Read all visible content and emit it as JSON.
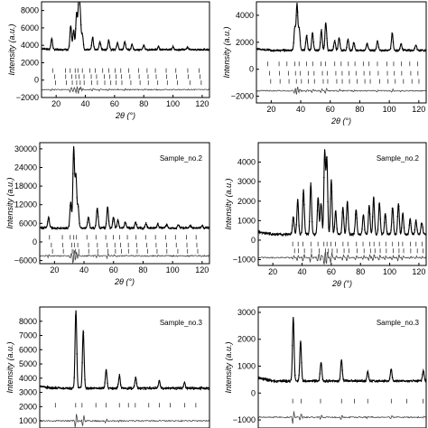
{
  "chart_data": [
    {
      "type": "line",
      "panel": "top-left",
      "sample_label": "",
      "xlabel": "2θ (°)",
      "ylabel": "Intensity (a.u.)",
      "xlim": [
        10,
        125
      ],
      "ylim": [
        -2000,
        9000
      ],
      "xticks": [
        20,
        40,
        60,
        80,
        100,
        120
      ],
      "yticks": [
        -2000,
        0,
        2000,
        4000,
        6000,
        8000
      ],
      "baseline": 3500,
      "peaks": [
        [
          17,
          1200
        ],
        [
          30,
          2800
        ],
        [
          32,
          2300
        ],
        [
          34,
          4200
        ],
        [
          35.5,
          5300
        ],
        [
          36.5,
          3600
        ],
        [
          38,
          1700
        ],
        [
          45,
          1400
        ],
        [
          50,
          900
        ],
        [
          56,
          1100
        ],
        [
          62,
          800
        ],
        [
          67,
          900
        ],
        [
          72,
          600
        ],
        [
          80,
          500
        ],
        [
          90,
          400
        ],
        [
          100,
          350
        ],
        [
          110,
          300
        ]
      ],
      "tick_rows": [
        1100,
        400,
        -300
      ],
      "tick_positions": [
        18,
        26,
        30,
        33,
        35,
        38,
        43,
        47,
        52,
        56,
        60,
        64,
        70,
        76,
        82,
        88,
        95,
        102,
        110,
        118
      ],
      "difference_level": -1100
    },
    {
      "type": "line",
      "panel": "top-right",
      "sample_label": "",
      "xlabel": "2θ (°)",
      "ylabel": "Intensity (a.u.)",
      "xlim": [
        10,
        125
      ],
      "ylim": [
        -2500,
        5000
      ],
      "xticks": [
        20,
        40,
        60,
        80,
        100,
        120
      ],
      "yticks": [
        -2000,
        0,
        2000,
        4000
      ],
      "baseline": 1400,
      "peaks": [
        [
          36,
          1700
        ],
        [
          37.5,
          3400
        ],
        [
          39,
          1600
        ],
        [
          44,
          1100
        ],
        [
          48,
          1300
        ],
        [
          54,
          1500
        ],
        [
          57,
          2100
        ],
        [
          63,
          700
        ],
        [
          66,
          900
        ],
        [
          72,
          800
        ],
        [
          76,
          600
        ],
        [
          85,
          500
        ],
        [
          92,
          700
        ],
        [
          102,
          1300
        ],
        [
          108,
          500
        ],
        [
          118,
          400
        ]
      ],
      "tick_rows": [
        400,
        -300,
        -900
      ],
      "tick_positions": [
        18,
        25,
        31,
        36,
        39,
        44,
        48,
        54,
        57,
        63,
        67,
        72,
        77,
        82,
        86,
        92,
        98,
        103,
        108,
        114,
        119
      ],
      "difference_level": -1600
    },
    {
      "type": "line",
      "panel": "middle-left",
      "sample_label": "Sample_no.2",
      "xlabel": "2θ (°)",
      "ylabel": "Intensity (a.u.)",
      "xlim": [
        10,
        125
      ],
      "ylim": [
        -7000,
        32000
      ],
      "xticks": [
        20,
        40,
        60,
        80,
        100,
        120
      ],
      "yticks": [
        -6000,
        0,
        6000,
        12000,
        18000,
        24000,
        30000
      ],
      "baseline": 4500,
      "peaks": [
        [
          16,
          3500
        ],
        [
          31,
          8500
        ],
        [
          33,
          26000
        ],
        [
          34.5,
          17000
        ],
        [
          36,
          7000
        ],
        [
          43,
          3500
        ],
        [
          49,
          6500
        ],
        [
          56,
          7000
        ],
        [
          60,
          3500
        ],
        [
          63,
          2500
        ],
        [
          68,
          2000
        ],
        [
          75,
          1800
        ],
        [
          82,
          1400
        ],
        [
          90,
          1200
        ],
        [
          96,
          1100
        ],
        [
          104,
          1000
        ],
        [
          112,
          900
        ],
        [
          120,
          800
        ]
      ],
      "tick_rows": [
        1500,
        -1000,
        -3000
      ],
      "tick_positions": [
        17,
        25,
        31,
        33,
        35,
        42,
        48,
        55,
        60,
        64,
        69,
        75,
        82,
        88,
        95,
        102,
        109,
        116
      ],
      "difference_level": -4500
    },
    {
      "type": "line",
      "panel": "middle-right",
      "sample_label": "Sample_no.2",
      "xlabel": "2θ (°)",
      "ylabel": "Intensity (a.u.)",
      "xlim": [
        10,
        125
      ],
      "ylim": [
        -1300,
        5000
      ],
      "xticks": [
        20,
        40,
        60,
        80,
        100,
        120
      ],
      "yticks": [
        -1000,
        0,
        1000,
        2000,
        3000,
        4000
      ],
      "baseline": 300,
      "peaks": [
        [
          34,
          900
        ],
        [
          37,
          1800
        ],
        [
          41,
          2300
        ],
        [
          46,
          2600
        ],
        [
          51,
          1900
        ],
        [
          53,
          1600
        ],
        [
          55.5,
          4300
        ],
        [
          57,
          3900
        ],
        [
          60,
          2800
        ],
        [
          63,
          1200
        ],
        [
          68,
          1400
        ],
        [
          71,
          1700
        ],
        [
          77,
          1300
        ],
        [
          82,
          1000
        ],
        [
          86,
          1500
        ],
        [
          89,
          1900
        ],
        [
          93,
          1600
        ],
        [
          97,
          1100
        ],
        [
          102,
          1400
        ],
        [
          106,
          1600
        ],
        [
          109,
          1100
        ],
        [
          114,
          800
        ],
        [
          118,
          700
        ],
        [
          122,
          600
        ]
      ],
      "tick_rows": [
        -200,
        -550
      ],
      "tick_positions": [
        34,
        37,
        41,
        46,
        51,
        55,
        57,
        60,
        63,
        68,
        71,
        77,
        82,
        86,
        89,
        93,
        97,
        102,
        106,
        109,
        114,
        118,
        122
      ],
      "difference_level": -900
    },
    {
      "type": "line",
      "panel": "bottom-left",
      "sample_label": "Sample_no.3",
      "xlabel": "",
      "ylabel": "Intensity (a.u.)",
      "xlim": [
        10,
        125
      ],
      "ylim": [
        500,
        9000
      ],
      "xticks": [],
      "yticks": [
        1000,
        2000,
        3000,
        4000,
        5000,
        6000,
        7000,
        8000
      ],
      "baseline": 3300,
      "peaks": [
        [
          34.5,
          5500
        ],
        [
          39.5,
          4100
        ],
        [
          55,
          1300
        ],
        [
          64,
          900
        ],
        [
          75,
          700
        ],
        [
          91,
          500
        ],
        [
          108,
          400
        ]
      ],
      "tick_rows": [
        2100
      ],
      "tick_positions": [
        21,
        34,
        39,
        48,
        55,
        64,
        70,
        75,
        84,
        91,
        98,
        108,
        116
      ],
      "difference_level": 1000
    },
    {
      "type": "line",
      "panel": "bottom-right",
      "sample_label": "Sample_no.3",
      "xlabel": "",
      "ylabel": "Intensity (a.u.)",
      "xlim": [
        10,
        125
      ],
      "ylim": [
        -1300,
        3200
      ],
      "xticks": [],
      "yticks": [
        -1000,
        0,
        1000,
        2000,
        3000
      ],
      "baseline": 450,
      "peaks": [
        [
          34,
          2400
        ],
        [
          39,
          1500
        ],
        [
          53,
          700
        ],
        [
          67,
          800
        ],
        [
          85,
          350
        ],
        [
          101,
          450
        ],
        [
          123,
          400
        ]
      ],
      "tick_rows": [
        -300
      ],
      "tick_positions": [
        34,
        39,
        53,
        67,
        76,
        85,
        101,
        112,
        123
      ],
      "difference_level": -900
    }
  ]
}
